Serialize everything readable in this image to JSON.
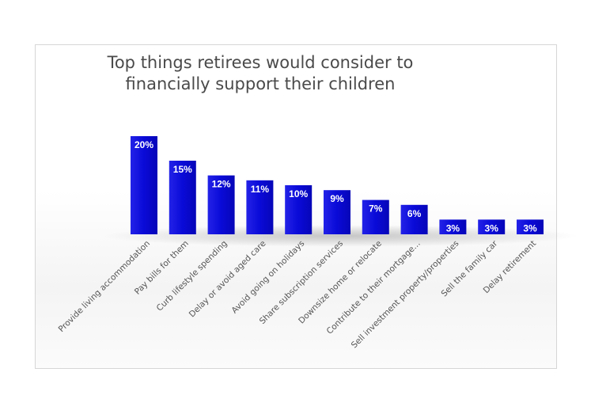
{
  "chart_data": {
    "type": "bar",
    "title": "Top things retirees would consider to financially support their children",
    "title_lines": [
      "Top things retirees would consider to",
      "financially support their children"
    ],
    "categories": [
      "Provide living accommodation",
      "Pay bills for them",
      "Curb lifestyle spending",
      "Delay or avoid aged care",
      "Avoid going on holidays",
      "Share subscription services",
      "Downsize home or relocate",
      "Contribute to their mortgage...",
      "Sell investment property/properties",
      "Sell the family car",
      "Delay retirement"
    ],
    "values": [
      20,
      15,
      12,
      11,
      10,
      9,
      7,
      6,
      3,
      3,
      3
    ],
    "data_labels": [
      "20%",
      "15%",
      "12%",
      "11%",
      "10%",
      "9%",
      "7%",
      "6%",
      "3%",
      "3%",
      "3%"
    ],
    "value_unit": "%",
    "xlabel": "",
    "ylabel": "",
    "ylim": [
      0,
      22
    ],
    "grid": false,
    "legend": "none",
    "bar_color": "#0b0bd6",
    "bar_color_light": "#3a3af0"
  }
}
